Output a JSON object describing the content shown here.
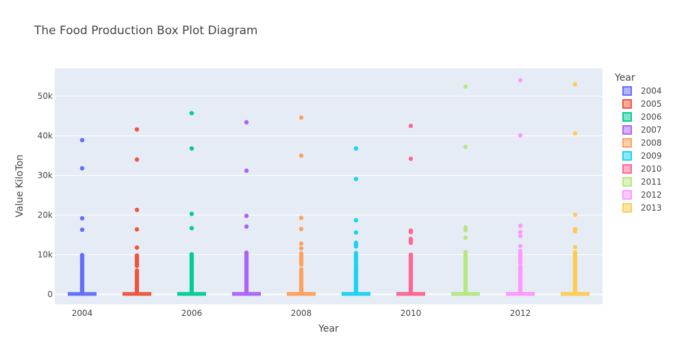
{
  "chart_data": {
    "type": "box",
    "title": "The Food Production Box Plot Diagram",
    "xlabel": "Year",
    "ylabel": "Value KiloTon",
    "legend_title": "Year",
    "legend_position": "right",
    "grid": true,
    "xlim": [
      2003.5,
      2013.5
    ],
    "ylim": [
      -2500,
      57000
    ],
    "x_ticks": [
      2004,
      2006,
      2008,
      2010,
      2012
    ],
    "y_ticks": [
      0,
      10000,
      20000,
      30000,
      40000,
      50000
    ],
    "y_tick_labels": [
      "0",
      "10k",
      "20k",
      "30k",
      "40k",
      "50k"
    ],
    "background": "#e5ecf6",
    "series": [
      {
        "name": "2004",
        "color": "#636efa",
        "q1": 0,
        "median": 30,
        "q3": 230,
        "whisker_low": 0,
        "whisker_high": 550,
        "outliers": [
          38900,
          31800,
          19200,
          16300,
          9900,
          9700,
          9500,
          9200,
          9000,
          8700,
          8400,
          8100,
          7800,
          7400,
          7000,
          6600,
          6200,
          5800,
          5400,
          5000,
          4600,
          4200,
          3800,
          3400,
          3000,
          2600,
          2200,
          1800,
          1400,
          1000,
          700
        ]
      },
      {
        "name": "2005",
        "color": "#ef553b",
        "q1": 0,
        "median": 30,
        "q3": 240,
        "whisker_low": 0,
        "whisker_high": 560,
        "outliers": [
          41600,
          34000,
          21300,
          16400,
          11800,
          9800,
          9500,
          9200,
          8800,
          8400,
          8000,
          7600,
          7200,
          6000,
          5600,
          5200,
          4800,
          4400,
          4000,
          3600,
          3200,
          2800,
          2400,
          2000,
          1600,
          1200,
          800
        ]
      },
      {
        "name": "2006",
        "color": "#00cc96",
        "q1": 0,
        "median": 30,
        "q3": 240,
        "whisker_low": 0,
        "whisker_high": 570,
        "outliers": [
          45700,
          36800,
          20300,
          16700,
          10100,
          9800,
          9500,
          9200,
          8900,
          8600,
          8300,
          8000,
          7600,
          7200,
          6800,
          6400,
          6000,
          5600,
          5200,
          4800,
          4400,
          4000,
          3600,
          3200,
          2800,
          2400,
          2000,
          1600,
          1200,
          800
        ]
      },
      {
        "name": "2007",
        "color": "#ab63fa",
        "q1": 0,
        "median": 30,
        "q3": 250,
        "whisker_low": 0,
        "whisker_high": 580,
        "outliers": [
          43400,
          31200,
          19800,
          17100,
          10500,
          10200,
          9900,
          9600,
          9300,
          9000,
          8600,
          8200,
          7800,
          7400,
          7000,
          6600,
          6200,
          5800,
          5400,
          5000,
          4600,
          4200,
          3800,
          3400,
          3000,
          2600,
          2200,
          1800,
          1400,
          1000,
          700
        ]
      },
      {
        "name": "2008",
        "color": "#ffa15a",
        "q1": 0,
        "median": 30,
        "q3": 250,
        "whisker_low": 0,
        "whisker_high": 590,
        "outliers": [
          44600,
          35000,
          19300,
          16500,
          12800,
          11600,
          10300,
          9900,
          9500,
          9100,
          8700,
          8300,
          7900,
          7500,
          6300,
          5900,
          5500,
          5100,
          4700,
          4300,
          3900,
          3500,
          3100,
          2700,
          2300,
          1900,
          1500,
          1100,
          800
        ]
      },
      {
        "name": "2009",
        "color": "#19d3f3",
        "q1": 0,
        "median": 30,
        "q3": 260,
        "whisker_low": 0,
        "whisker_high": 600,
        "outliers": [
          36800,
          29100,
          18700,
          15600,
          13000,
          12500,
          12100,
          10400,
          10000,
          9600,
          9200,
          8600,
          8000,
          7400,
          6800,
          6400,
          6000,
          5600,
          5200,
          4800,
          4400,
          4000,
          3600,
          3200,
          2800,
          2400,
          2000,
          1600,
          1200,
          800
        ]
      },
      {
        "name": "2010",
        "color": "#ff6692",
        "q1": 0,
        "median": 30,
        "q3": 260,
        "whisker_low": 0,
        "whisker_high": 610,
        "outliers": [
          42500,
          34200,
          16100,
          15700,
          14000,
          13500,
          13000,
          10000,
          9700,
          9400,
          9100,
          8800,
          8400,
          8000,
          7600,
          7200,
          6800,
          6400,
          6000,
          5600,
          5200,
          4800,
          4400,
          4000,
          3600,
          3200,
          2800,
          2400,
          2000,
          1600,
          1200,
          800
        ]
      },
      {
        "name": "2011",
        "color": "#b6e880",
        "q1": 0,
        "median": 30,
        "q3": 270,
        "whisker_low": 0,
        "whisker_high": 620,
        "outliers": [
          52400,
          37200,
          16900,
          16200,
          14300,
          10700,
          10400,
          10100,
          9800,
          9500,
          9200,
          8800,
          8400,
          8000,
          7600,
          7200,
          6800,
          6400,
          6000,
          5600,
          5200,
          4800,
          4400,
          4000,
          3600,
          3200,
          2800,
          2400,
          2000,
          1600,
          1200,
          800
        ]
      },
      {
        "name": "2012",
        "color": "#ff97ff",
        "q1": 0,
        "median": 30,
        "q3": 270,
        "whisker_low": 0,
        "whisker_high": 630,
        "outliers": [
          54000,
          40100,
          17300,
          15700,
          14700,
          12200,
          10900,
          10600,
          10300,
          10000,
          9600,
          9200,
          8800,
          8400,
          8000,
          7100,
          6700,
          6300,
          5900,
          5500,
          5100,
          4700,
          4300,
          3900,
          3500,
          3100,
          2700,
          2300,
          1900,
          1500,
          1100,
          800
        ]
      },
      {
        "name": "2013",
        "color": "#fecb52",
        "q1": 0,
        "median": 30,
        "q3": 280,
        "whisker_low": 0,
        "whisker_high": 640,
        "outliers": [
          53000,
          40600,
          20100,
          16500,
          15900,
          11900,
          10600,
          10300,
          10000,
          9600,
          9200,
          8800,
          8400,
          8000,
          7600,
          7200,
          6800,
          6400,
          6000,
          5600,
          5200,
          4800,
          4400,
          4000,
          3600,
          3200,
          2800,
          2400,
          2000,
          1600,
          1200,
          800
        ]
      }
    ]
  }
}
